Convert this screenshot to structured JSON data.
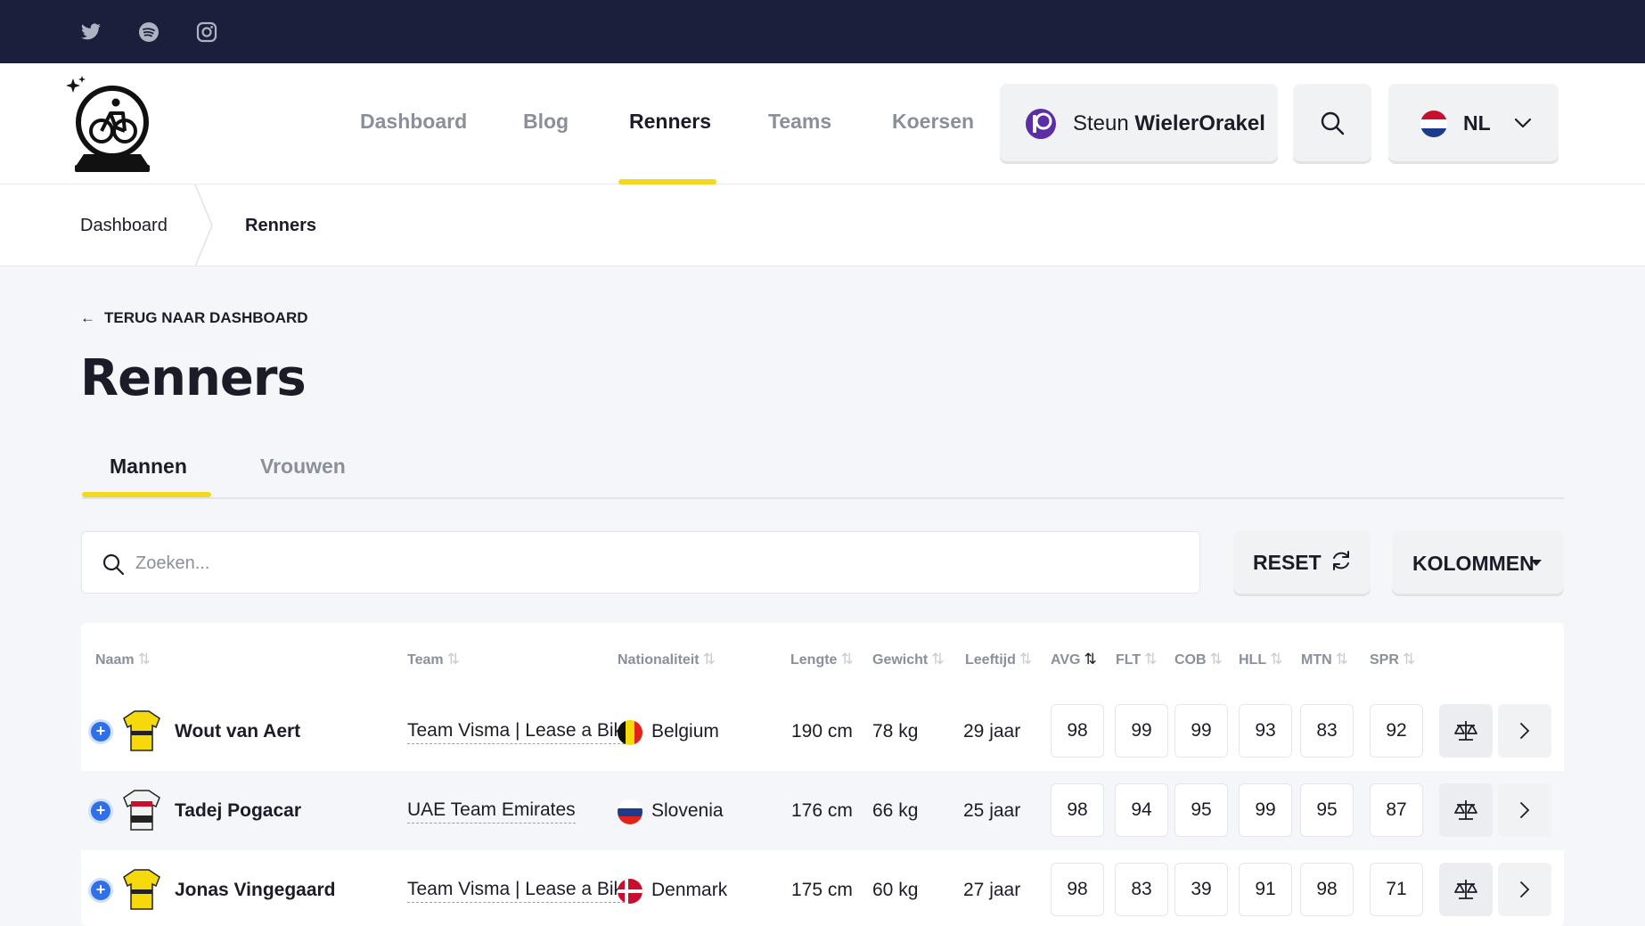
{
  "social": {
    "icons": [
      "twitter-icon",
      "spotify-icon",
      "instagram-icon"
    ]
  },
  "nav": {
    "items": [
      "Dashboard",
      "Blog",
      "Renners",
      "Teams",
      "Koersen"
    ],
    "active": "Renners",
    "support_prefix": "Steun ",
    "support_brand": "WielerOrakel",
    "language": "NL"
  },
  "breadcrumb": {
    "home": "Dashboard",
    "current": "Renners"
  },
  "page": {
    "back_label": "TERUG NAAR DASHBOARD",
    "title": "Renners",
    "tabs": [
      "Mannen",
      "Vrouwen"
    ],
    "active_tab": "Mannen",
    "search_placeholder": "Zoeken...",
    "reset_label": "RESET",
    "columns_label": "KOLOMMEN"
  },
  "table": {
    "headers": [
      "Naam",
      "Team",
      "Nationaliteit",
      "Lengte",
      "Gewicht",
      "Leeftijd",
      "AVG",
      "FLT",
      "COB",
      "HLL",
      "MTN",
      "SPR"
    ],
    "sort_glyph": "⇅",
    "rows": [
      {
        "name": "Wout van Aert",
        "team": "Team Visma | Lease a Bike",
        "nationality": "Belgium",
        "height": "190 cm",
        "weight": "78 kg",
        "age": "29 jaar",
        "stats": [
          "98",
          "99",
          "99",
          "93",
          "83",
          "92"
        ]
      },
      {
        "name": "Tadej Pogacar",
        "team": "UAE Team Emirates",
        "nationality": "Slovenia",
        "height": "176 cm",
        "weight": "66 kg",
        "age": "25 jaar",
        "stats": [
          "98",
          "94",
          "95",
          "99",
          "95",
          "87"
        ]
      },
      {
        "name": "Jonas Vingegaard",
        "team": "Team Visma | Lease a Bike",
        "nationality": "Denmark",
        "height": "175 cm",
        "weight": "60 kg",
        "age": "27 jaar",
        "stats": [
          "98",
          "83",
          "39",
          "91",
          "98",
          "71"
        ]
      }
    ]
  },
  "colors": {
    "accent": "#f3d820",
    "topbar": "#1b1f3b",
    "plus": "#2f6fe8"
  }
}
